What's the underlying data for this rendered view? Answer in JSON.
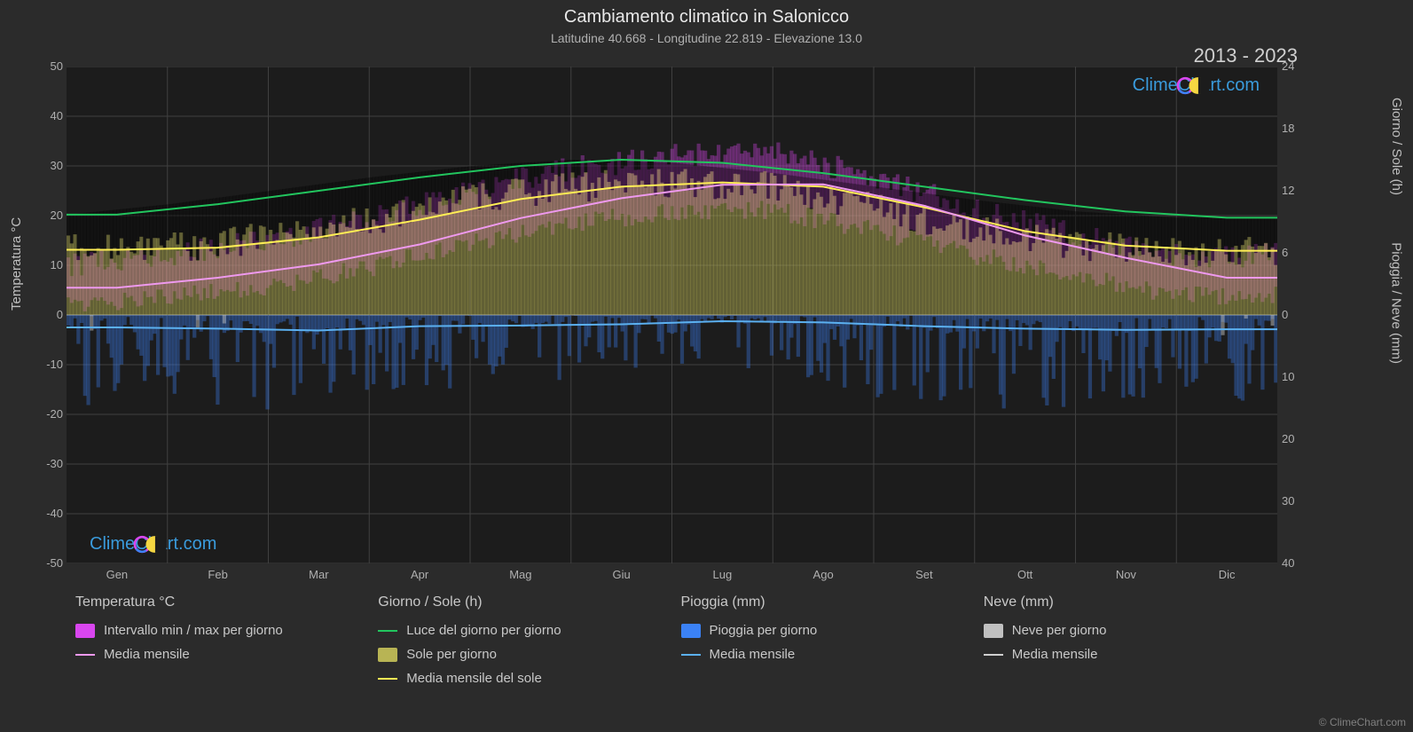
{
  "title": "Cambiamento climatico in Salonicco",
  "subtitle": "Latitudine 40.668 - Longitudine 22.819 - Elevazione 13.0",
  "year_range": "2013 - 2023",
  "credit": "© ClimeChart.com",
  "watermark_text": "ClimeChart.com",
  "axes": {
    "left_label": "Temperatura °C",
    "right_top_label": "Giorno / Sole (h)",
    "right_bot_label": "Pioggia / Neve (mm)",
    "left_min": -50,
    "left_max": 50,
    "left_step": 10,
    "right_top_min": 0,
    "right_top_max": 24,
    "right_top_step": 6,
    "right_bot_min": 0,
    "right_bot_max": 40,
    "right_bot_step": 10,
    "months": [
      "Gen",
      "Feb",
      "Mar",
      "Apr",
      "Mag",
      "Giu",
      "Lug",
      "Ago",
      "Set",
      "Ott",
      "Nov",
      "Dic"
    ]
  },
  "colors": {
    "bg": "#2b2b2b",
    "plot_bg": "#1c1c1c",
    "grid": "#404040",
    "zero_line": "#606060",
    "text": "#c0c0c0",
    "temp_range_fill": "#d946ef",
    "temp_mean_line": "#ee99ee",
    "daylight_line": "#22c55e",
    "sun_fill": "#b8b454",
    "sun_mean_line": "#ffee55",
    "rain_fill": "#3b82f6",
    "rain_mean_line": "#5bb0f0",
    "snow_fill": "#c0c0c0",
    "snow_mean_line": "#d0d0d0",
    "watermark": "#3a9bdc"
  },
  "series": {
    "daylight_h": [
      9.7,
      10.7,
      12.0,
      13.3,
      14.4,
      15.0,
      14.7,
      13.7,
      12.4,
      11.1,
      10.0,
      9.4
    ],
    "sun_mean_h": [
      6.3,
      6.5,
      7.5,
      9.2,
      11.2,
      12.4,
      12.8,
      12.4,
      10.4,
      8.1,
      6.7,
      6.2
    ],
    "temp_mean_c": [
      5.5,
      7.5,
      10.2,
      14.2,
      19.5,
      23.5,
      26.2,
      26.3,
      22.0,
      16.0,
      11.5,
      7.5
    ],
    "temp_min_c": [
      2.0,
      3.5,
      6.0,
      9.5,
      14.5,
      18.5,
      21.0,
      21.0,
      17.0,
      12.0,
      7.5,
      4.0
    ],
    "temp_max_c": [
      10.0,
      12.0,
      15.0,
      19.5,
      25.0,
      29.5,
      32.0,
      32.5,
      28.0,
      21.0,
      16.0,
      12.0
    ],
    "rain_mean_mm": [
      2.0,
      2.2,
      2.5,
      1.8,
      1.7,
      1.5,
      1.0,
      1.2,
      1.8,
      2.2,
      2.4,
      2.3
    ],
    "rain_max_mm": [
      15,
      14,
      16,
      12,
      13,
      11,
      8,
      9,
      14,
      16,
      15,
      14
    ]
  },
  "legend": {
    "temp_head": "Temperatura °C",
    "temp_range": "Intervallo min / max per giorno",
    "temp_mean": "Media mensile",
    "day_head": "Giorno / Sole (h)",
    "daylight": "Luce del giorno per giorno",
    "sun": "Sole per giorno",
    "sun_mean": "Media mensile del sole",
    "rain_head": "Pioggia (mm)",
    "rain": "Pioggia per giorno",
    "rain_mean": "Media mensile",
    "snow_head": "Neve (mm)",
    "snow": "Neve per giorno",
    "snow_mean": "Media mensile"
  }
}
